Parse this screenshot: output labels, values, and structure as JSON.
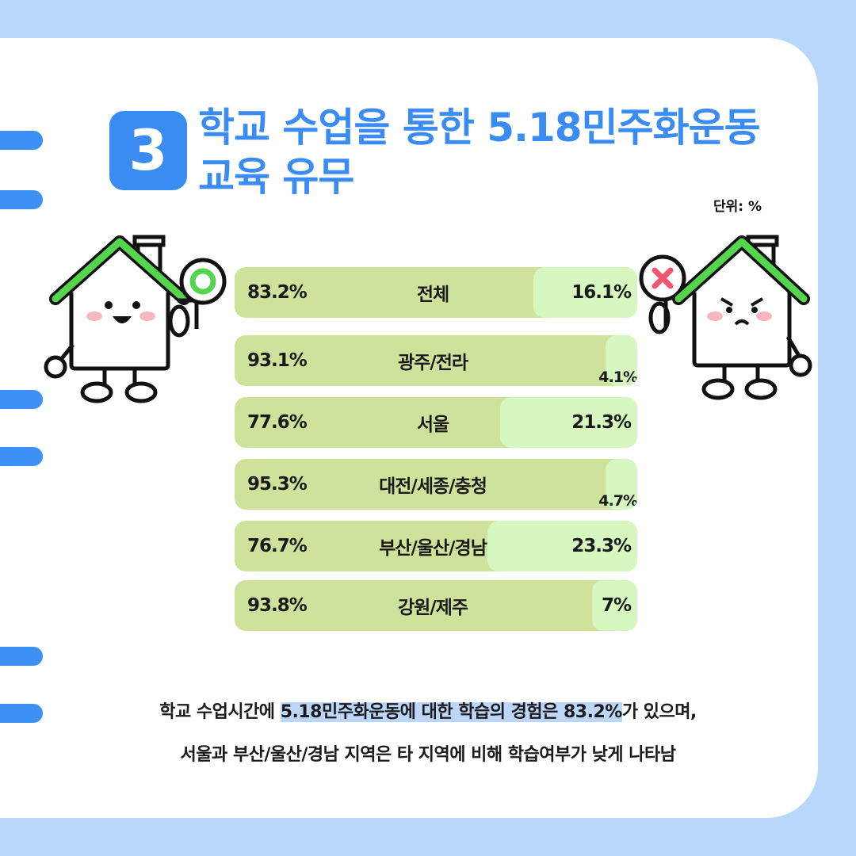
{
  "header": {
    "badge_number": "3",
    "title_line1": "학교 수업을 통한 5.18민주화운동",
    "title_line2": "교육 유무",
    "unit_label": "단위: %"
  },
  "chart_data": {
    "type": "bar",
    "stacked": true,
    "orientation": "horizontal",
    "categories": [
      "전체",
      "광주/전라",
      "서울",
      "대전/세종/충청",
      "부산/울산/경남",
      "강원/제주"
    ],
    "series": [
      {
        "values": [
          83.2,
          93.1,
          77.6,
          95.3,
          76.7,
          93.8
        ]
      },
      {
        "values": [
          16.1,
          4.1,
          21.3,
          4.7,
          23.3,
          7
        ]
      }
    ],
    "value_labels_yes": [
      "83.2%",
      "93.1%",
      "77.6%",
      "95.3%",
      "76.7%",
      "93.8%"
    ],
    "value_labels_no": [
      "16.1%",
      "4.1%",
      "21.3%",
      "4.7%",
      "23.3%",
      "7%"
    ],
    "colors": {
      "yes": "#cfe29b",
      "no": "#d6f7bf"
    },
    "unit": "%"
  },
  "summary": {
    "line1_pre": "학교 수업시간에 ",
    "line1_highlight": "5.18민주화운동에 대한 학습의 경험은 83.2%",
    "line1_post": "가 있으며,",
    "line2": "서울과 부산/울산/경남 지역은 타 지역에 비해 학습여부가 낮게 나타남"
  },
  "characters": {
    "left": {
      "sign": "O",
      "icon": "circle-sign-icon",
      "expression": "happy"
    },
    "right": {
      "sign": "X",
      "icon": "x-sign-icon",
      "expression": "angry"
    }
  },
  "colors": {
    "accent": "#3a8cf2",
    "background": "#b8d7fb",
    "roof": "#55d44e"
  }
}
